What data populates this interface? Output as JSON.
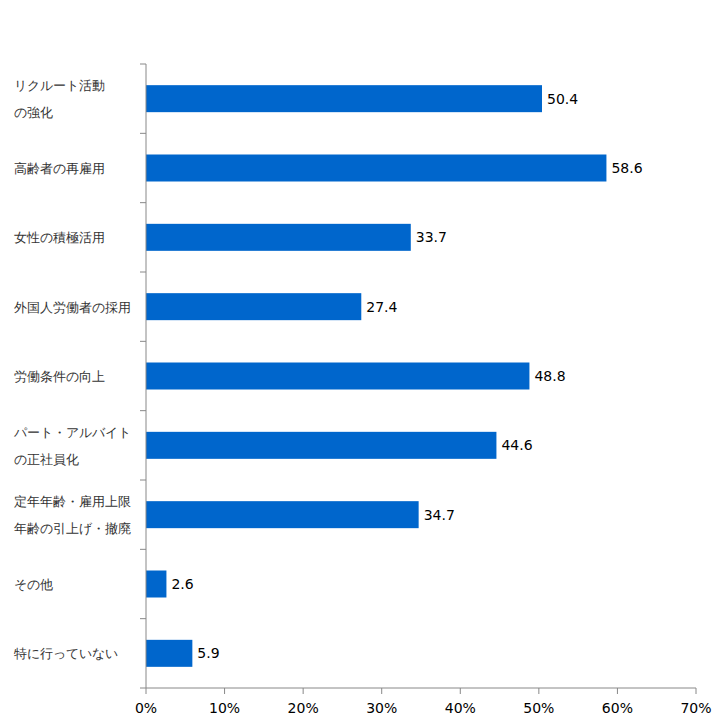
{
  "chart_data": {
    "type": "bar",
    "orientation": "horizontal",
    "categories": [
      "リクルート活動\nの強化",
      "高齢者の再雇用",
      "女性の積極活用",
      "外国人労働者の採用",
      "労働条件の向上",
      "パート・アルバイト\nの正社員化",
      "定年年齢・雇用上限\n年齢の引上げ・撤廃",
      "その他",
      "特に行っていない"
    ],
    "values": [
      50.4,
      58.6,
      33.7,
      27.4,
      48.8,
      44.6,
      34.7,
      2.6,
      5.9
    ],
    "color": "#0066cc",
    "xlim": [
      0,
      70
    ],
    "xticks": [
      {
        "value": 0,
        "label": "0%"
      },
      {
        "value": 10,
        "label": "10%"
      },
      {
        "value": 20,
        "label": "20%"
      },
      {
        "value": 30,
        "label": "30%"
      },
      {
        "value": 40,
        "label": "40%"
      },
      {
        "value": 50,
        "label": "50%"
      },
      {
        "value": 60,
        "label": "60%"
      },
      {
        "value": 70,
        "label": "70%"
      }
    ],
    "grid": false,
    "data_labels": true
  }
}
